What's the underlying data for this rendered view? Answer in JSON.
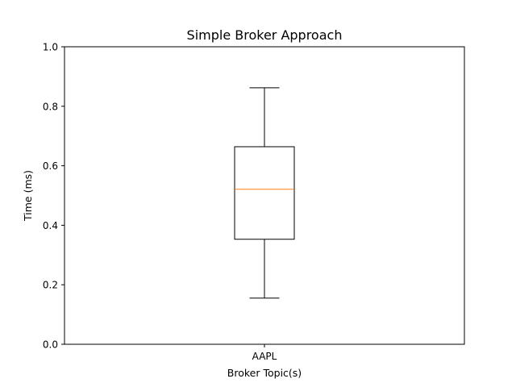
{
  "chart_data": {
    "type": "box",
    "title": "Simple Broker Approach",
    "xlabel": "Broker Topic(s)",
    "ylabel": "Time (ms)",
    "ylim": [
      0.0,
      1.0
    ],
    "yticks": [
      "0.0",
      "0.2",
      "0.4",
      "0.6",
      "0.8",
      "1.0"
    ],
    "categories": [
      "AAPL"
    ],
    "boxes": [
      {
        "category": "AAPL",
        "whisker_low": 0.155,
        "q1": 0.353,
        "median": 0.521,
        "q3": 0.664,
        "whisker_high": 0.862
      }
    ],
    "grid": false,
    "colors": {
      "box": "#000000",
      "median": "#ff7f0e"
    }
  }
}
